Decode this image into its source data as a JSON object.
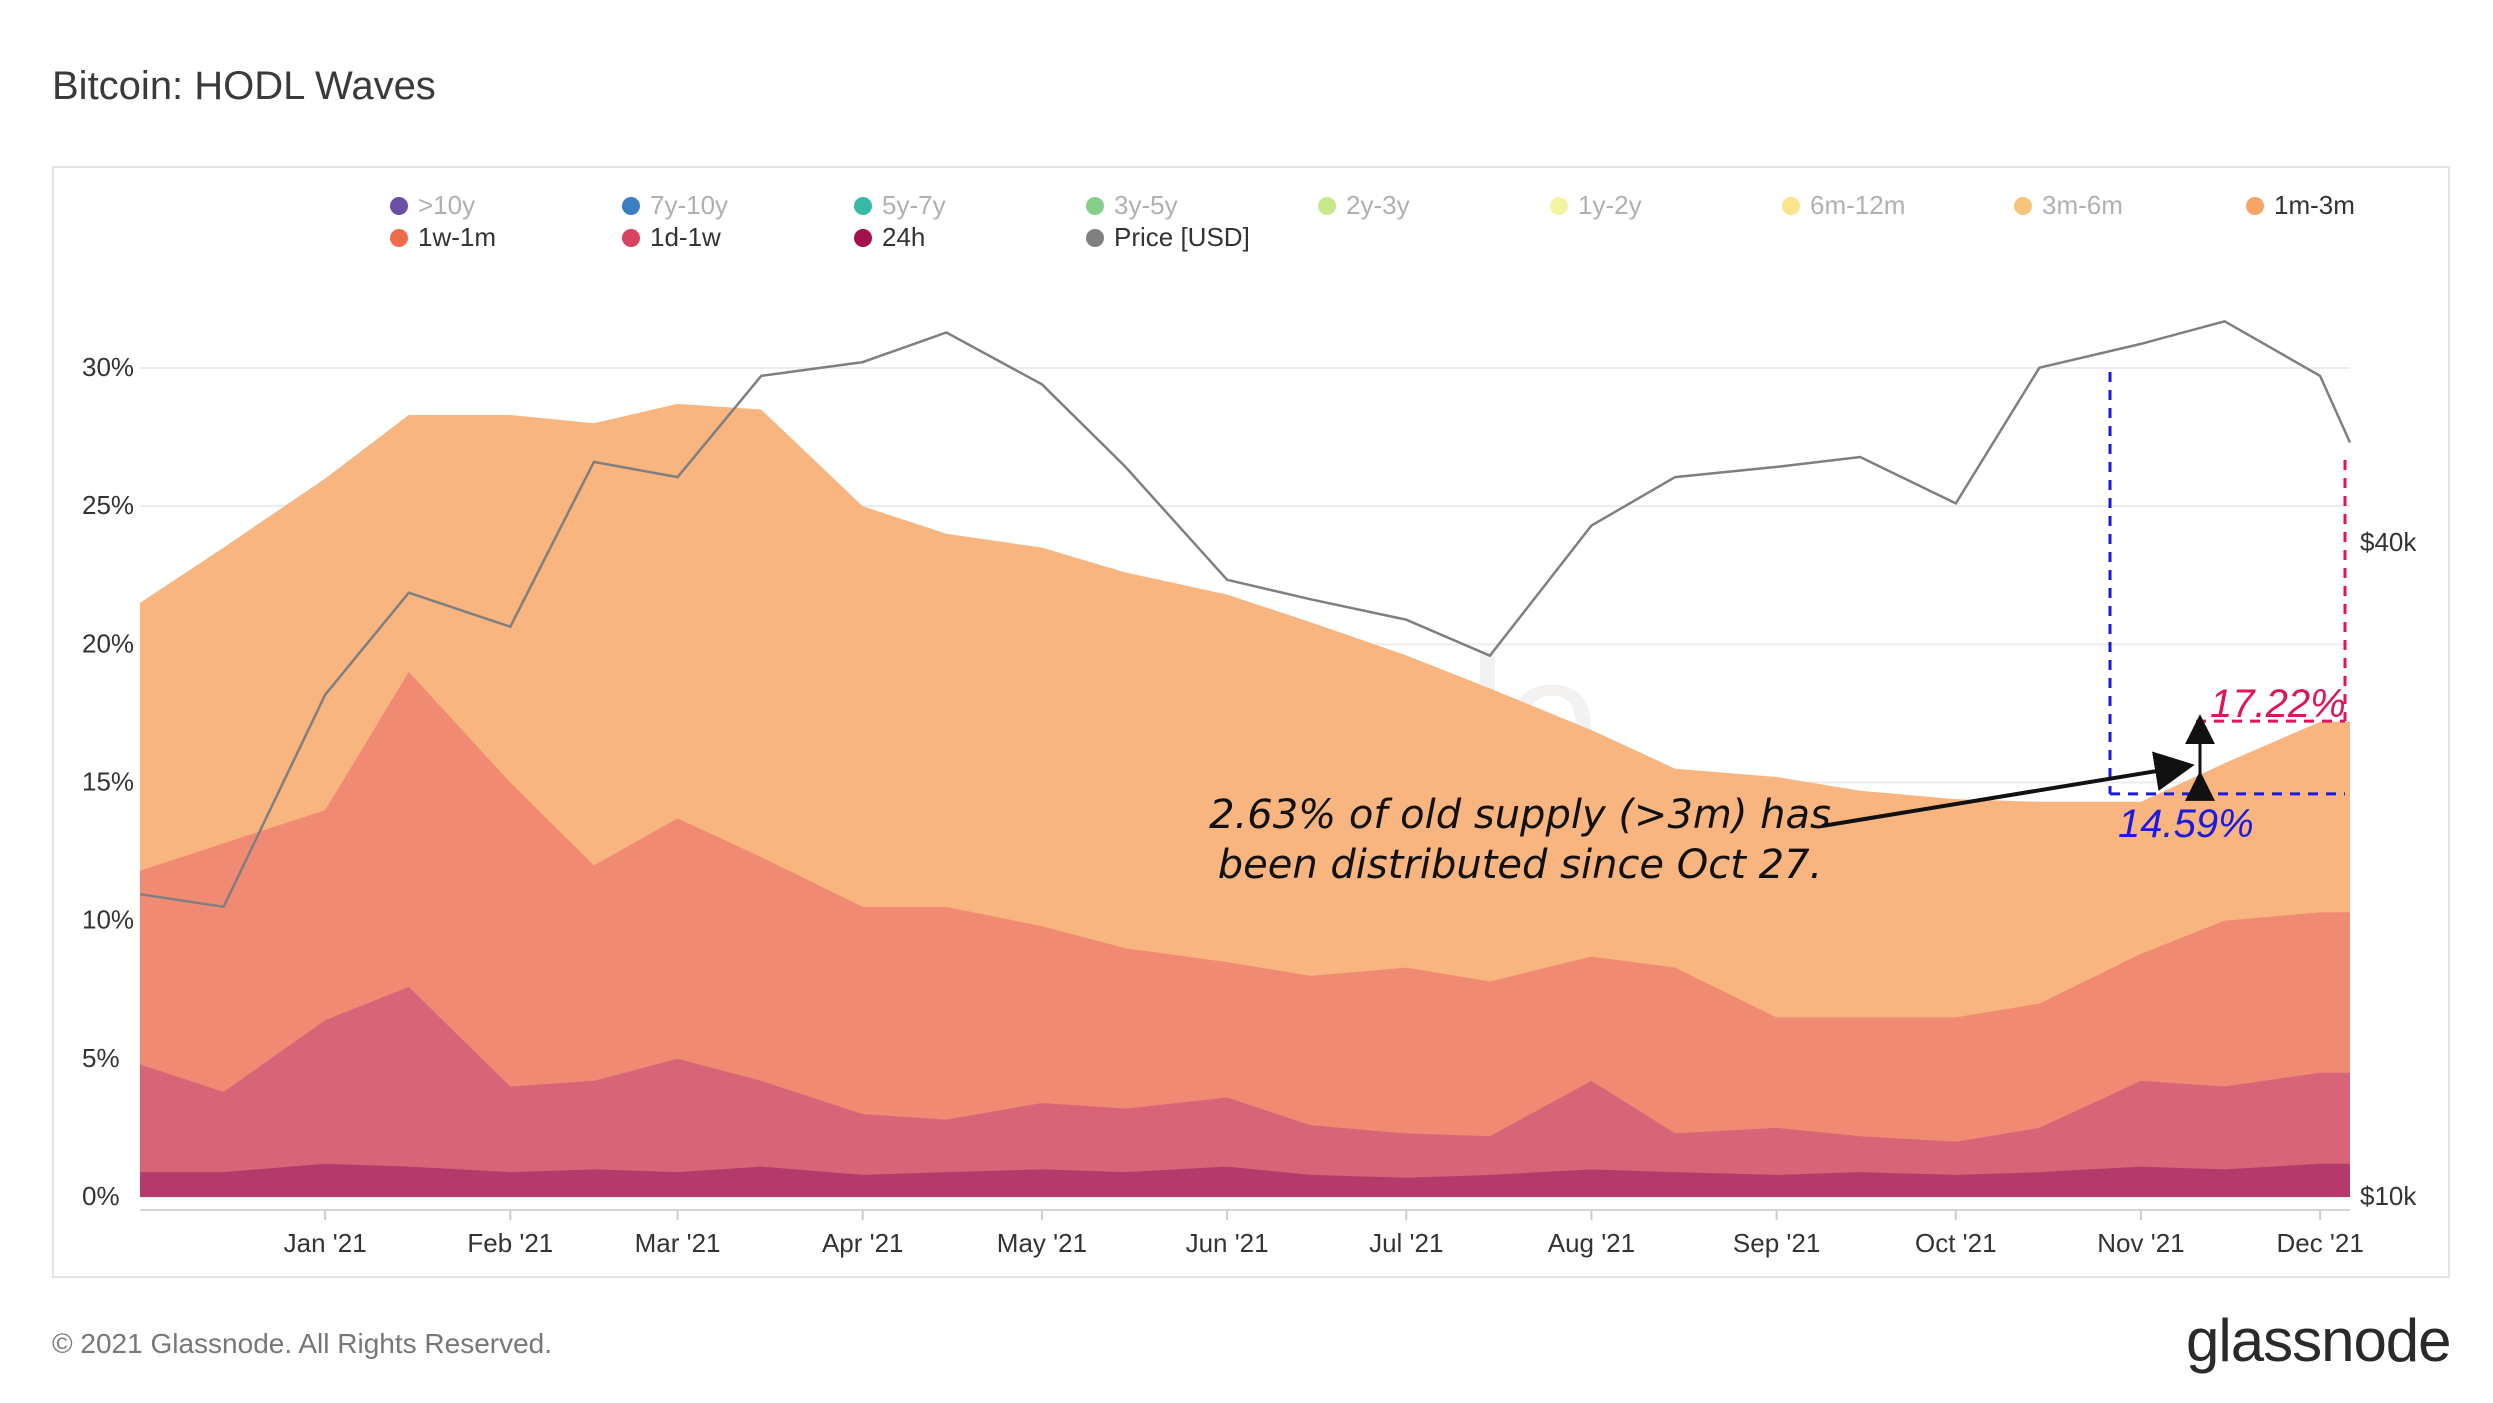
{
  "title": "Bitcoin: HODL Waves",
  "footer": {
    "copyright": "© 2021 Glassnode. All Rights Reserved.",
    "logo": "glassnode",
    "watermark": "glassnode"
  },
  "legend": [
    {
      "label": ">10y",
      "color": "#6a4fa3",
      "muted": true
    },
    {
      "label": "7y-10y",
      "color": "#3a7fc1",
      "muted": true
    },
    {
      "label": "5y-7y",
      "color": "#37b9a6",
      "muted": true
    },
    {
      "label": "3y-5y",
      "color": "#86cf8a",
      "muted": true
    },
    {
      "label": "2y-3y",
      "color": "#c8e88a",
      "muted": true
    },
    {
      "label": "1y-2y",
      "color": "#f3f4a2",
      "muted": true
    },
    {
      "label": "6m-12m",
      "color": "#fbe58a",
      "muted": true
    },
    {
      "label": "3m-6m",
      "color": "#f8c47c",
      "muted": true
    },
    {
      "label": "1m-3m",
      "color": "#f7a467",
      "muted": false
    },
    {
      "label": "1w-1m",
      "color": "#ef6b4b",
      "muted": false
    },
    {
      "label": "1d-1w",
      "color": "#d94360",
      "muted": false
    },
    {
      "label": "24h",
      "color": "#a3104b",
      "muted": false
    },
    {
      "label": "Price [USD]",
      "color": "#808080",
      "muted": false
    }
  ],
  "annotation": {
    "line1": "2.63% of old supply (>3m) has",
    "line2": "been distributed since Oct 27.",
    "value_high": "17.22%",
    "value_low": "14.59%"
  },
  "chart_data": {
    "type": "area",
    "x": [
      "2020-12-01",
      "2020-12-15",
      "2021-01-01",
      "2021-01-15",
      "2021-02-01",
      "2021-02-15",
      "2021-03-01",
      "2021-03-15",
      "2021-04-01",
      "2021-04-15",
      "2021-05-01",
      "2021-05-15",
      "2021-06-01",
      "2021-06-15",
      "2021-07-01",
      "2021-07-15",
      "2021-08-01",
      "2021-08-15",
      "2021-09-01",
      "2021-09-15",
      "2021-10-01",
      "2021-10-15",
      "2021-11-01",
      "2021-11-15",
      "2021-12-01",
      "2021-12-06"
    ],
    "xtick_labels": [
      "Jan '21",
      "Feb '21",
      "Mar '21",
      "Apr '21",
      "May '21",
      "Jun '21",
      "Jul '21",
      "Aug '21",
      "Sep '21",
      "Oct '21",
      "Nov '21",
      "Dec '21"
    ],
    "y_left": {
      "ticks": [
        "0%",
        "5%",
        "10%",
        "15%",
        "20%",
        "25%",
        "30%"
      ],
      "range": [
        0,
        30
      ]
    },
    "y_right": {
      "ticks": [
        "$10k",
        "$40k"
      ],
      "scale": "log"
    },
    "series": [
      {
        "name": "1m-3m",
        "type": "area",
        "color": "#f9b580",
        "values": [
          21.5,
          23.5,
          26.0,
          28.3,
          28.3,
          28.0,
          28.7,
          28.5,
          25.0,
          24.0,
          23.5,
          22.6,
          21.8,
          20.8,
          19.6,
          18.4,
          16.9,
          15.5,
          15.2,
          14.7,
          14.4,
          14.3,
          14.3,
          15.7,
          17.2,
          17.2
        ]
      },
      {
        "name": "1w-1m",
        "type": "area",
        "color": "#f08a72",
        "values": [
          11.8,
          12.8,
          14.0,
          19.0,
          15.0,
          12.0,
          13.7,
          12.3,
          10.5,
          10.5,
          9.8,
          9.0,
          8.5,
          8.0,
          8.3,
          7.8,
          8.7,
          8.3,
          6.5,
          6.5,
          6.5,
          7.0,
          8.8,
          10.0,
          10.3,
          10.3
        ]
      },
      {
        "name": "1d-1w",
        "type": "area",
        "color": "#d86478",
        "values": [
          4.8,
          3.8,
          6.4,
          7.6,
          4.0,
          4.2,
          5.0,
          4.2,
          3.0,
          2.8,
          3.4,
          3.2,
          3.6,
          2.6,
          2.3,
          2.2,
          4.2,
          2.3,
          2.5,
          2.2,
          2.0,
          2.5,
          4.2,
          4.0,
          4.5,
          4.5
        ]
      },
      {
        "name": "24h",
        "type": "area",
        "color": "#b53a6c",
        "values": [
          0.9,
          0.9,
          1.2,
          1.1,
          0.9,
          1.0,
          0.9,
          1.1,
          0.8,
          0.9,
          1.0,
          0.9,
          1.1,
          0.8,
          0.7,
          0.8,
          1.0,
          0.9,
          0.8,
          0.9,
          0.8,
          0.9,
          1.1,
          1.0,
          1.2,
          1.2
        ]
      },
      {
        "name": "Price [USD]",
        "type": "line",
        "color": "#7f7f7f",
        "values": [
          19000,
          18500,
          29000,
          36000,
          33500,
          47500,
          46000,
          57000,
          58700,
          62500,
          56000,
          47000,
          37000,
          35500,
          34000,
          31500,
          41500,
          46000,
          47000,
          48000,
          43500,
          58000,
          61000,
          64000,
          57000,
          49500
        ]
      }
    ],
    "annotations": {
      "oct27_old_supply_pct": 14.59,
      "dec_old_supply_pct": 17.22,
      "difference_pct": 2.63
    }
  }
}
